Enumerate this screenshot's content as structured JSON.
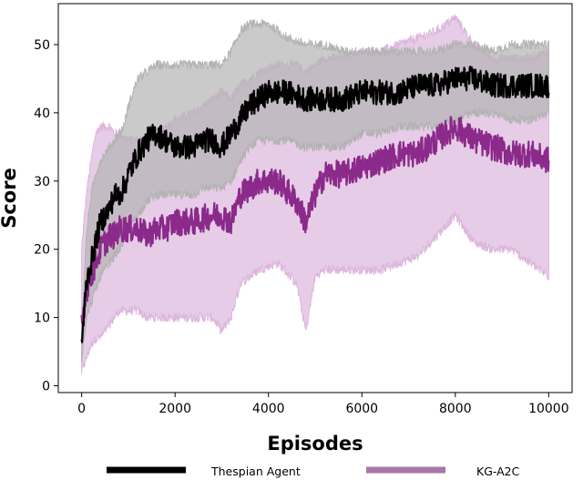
{
  "chart_data": {
    "type": "line",
    "title": "",
    "xlabel": "Episodes",
    "ylabel": "Score",
    "xlim": [
      -500,
      10500
    ],
    "ylim": [
      -1,
      56
    ],
    "x_ticks": [
      0,
      2000,
      4000,
      6000,
      8000,
      10000
    ],
    "y_ticks": [
      0,
      10,
      20,
      30,
      40,
      50
    ],
    "grid": false,
    "legend": {
      "placement": "bottom"
    },
    "series": [
      {
        "name": "Thespian Agent",
        "color": "#000000",
        "band_color": "#b3b3b3",
        "noise": 1.8,
        "x": [
          0,
          100,
          200,
          300,
          400,
          500,
          600,
          700,
          800,
          900,
          1000,
          1200,
          1400,
          1600,
          1800,
          2000,
          2200,
          2400,
          2600,
          2800,
          3000,
          3200,
          3400,
          3600,
          3800,
          4000,
          4400,
          4800,
          5200,
          5600,
          6000,
          6400,
          6800,
          7200,
          7600,
          8000,
          8400,
          8800,
          9200,
          9600,
          10000
        ],
        "mean": [
          6,
          15,
          18,
          21,
          24,
          25,
          26,
          28,
          28,
          29,
          31,
          34,
          36,
          37,
          36,
          35,
          35,
          35,
          36,
          36,
          35,
          37,
          39,
          41,
          42,
          43,
          43,
          42,
          42,
          42,
          43,
          43,
          43,
          44,
          44,
          45,
          45,
          44,
          44,
          44,
          44
        ],
        "upper": [
          8,
          22,
          28,
          31,
          33,
          34,
          35,
          36,
          37,
          38,
          41,
          45,
          46,
          47,
          47,
          47,
          47,
          47,
          47,
          47,
          47,
          49,
          52,
          53,
          53,
          53,
          51,
          50,
          50,
          49,
          49,
          49,
          49,
          49,
          49,
          50,
          50,
          49,
          50,
          50,
          50
        ],
        "lower": [
          4,
          10,
          12,
          14,
          16,
          17,
          18,
          19,
          20,
          21,
          23,
          25,
          27,
          28,
          28,
          28,
          28,
          28,
          29,
          29,
          29,
          30,
          33,
          35,
          36,
          36,
          36,
          35,
          35,
          35,
          37,
          37,
          38,
          38,
          38,
          39,
          40,
          40,
          39,
          39,
          40
        ]
      },
      {
        "name": "KG-A2C",
        "color": "#8b2a8b",
        "band_color": "#dcb6dc",
        "noise": 2.0,
        "x": [
          0,
          100,
          200,
          300,
          400,
          500,
          600,
          700,
          800,
          1000,
          1200,
          1400,
          1600,
          1800,
          2000,
          2400,
          2800,
          3000,
          3200,
          3400,
          3800,
          4200,
          4600,
          4800,
          5000,
          5200,
          5600,
          6000,
          6400,
          6800,
          7200,
          7600,
          8000,
          8400,
          8800,
          9200,
          9600,
          10000
        ],
        "mean": [
          9,
          14,
          16,
          18,
          20,
          21,
          22,
          22,
          23,
          23,
          23,
          22,
          23,
          23,
          24,
          24,
          25,
          25,
          24,
          28,
          30,
          30,
          27,
          24,
          28,
          31,
          31,
          32,
          33,
          34,
          34,
          36,
          38,
          36,
          35,
          34,
          34,
          33
        ],
        "upper": [
          20,
          28,
          33,
          37,
          38,
          38,
          38,
          37,
          37,
          36,
          36,
          36,
          37,
          38,
          39,
          40,
          42,
          43,
          42,
          44,
          46,
          47,
          47,
          46,
          47,
          48,
          48,
          49,
          49,
          50,
          51,
          52,
          54,
          50,
          48,
          48,
          48,
          49
        ],
        "lower": [
          2,
          4,
          6,
          7,
          7,
          8,
          9,
          10,
          11,
          11,
          11,
          10,
          10,
          10,
          10,
          10,
          10,
          8,
          10,
          15,
          17,
          18,
          15,
          8,
          16,
          17,
          17,
          17,
          17,
          18,
          19,
          22,
          25,
          21,
          20,
          20,
          18,
          16
        ]
      }
    ]
  }
}
